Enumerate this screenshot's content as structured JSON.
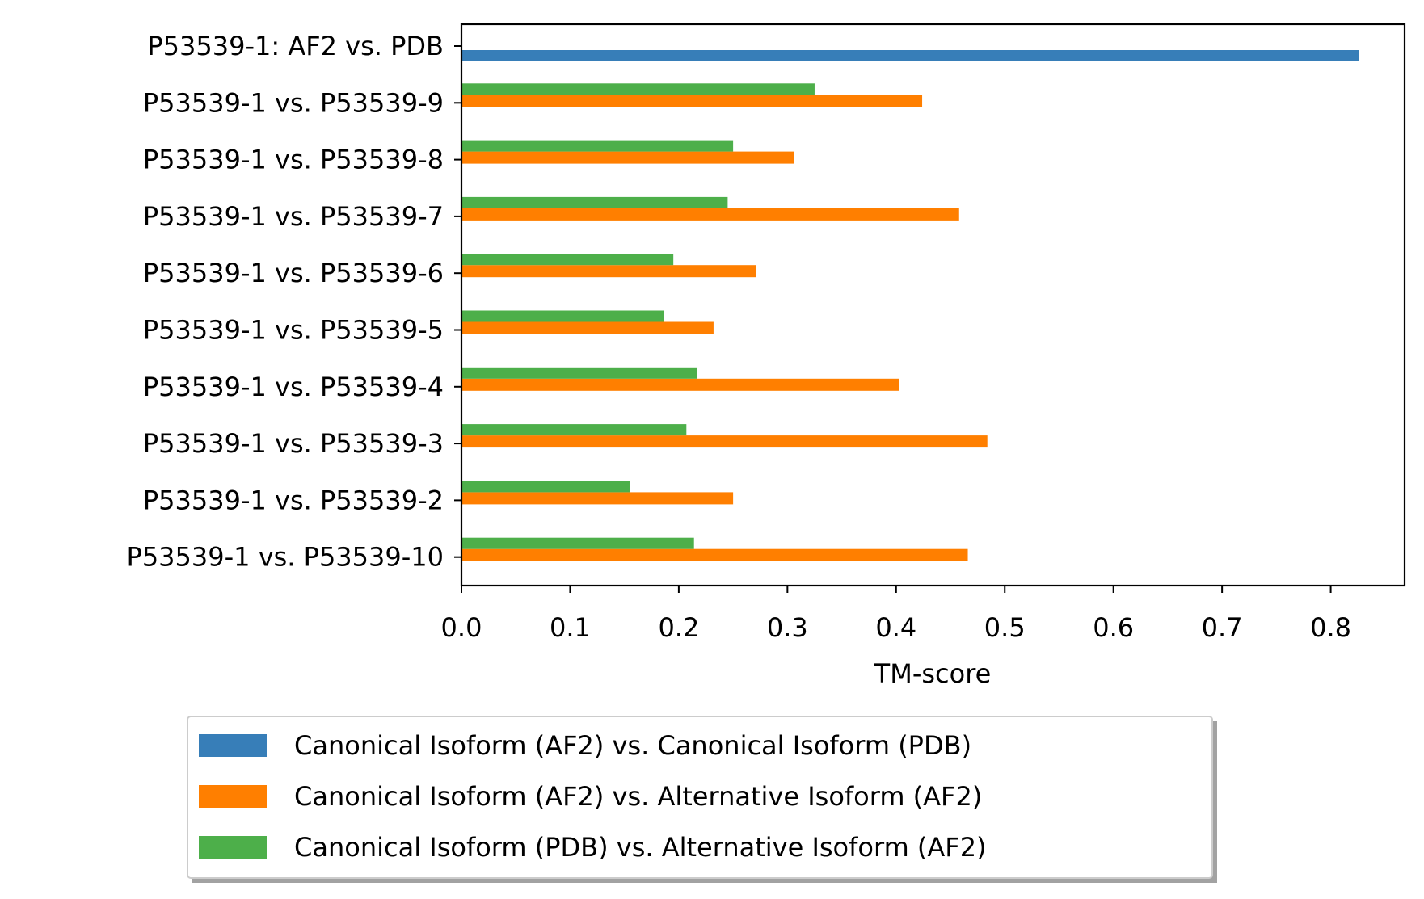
{
  "chart_data": {
    "type": "bar",
    "orientation": "horizontal",
    "categories": [
      "P53539-1: AF2 vs. PDB",
      "P53539-1 vs. P53539-9",
      "P53539-1 vs. P53539-8",
      "P53539-1 vs. P53539-7",
      "P53539-1 vs. P53539-6",
      "P53539-1 vs. P53539-5",
      "P53539-1 vs. P53539-4",
      "P53539-1 vs. P53539-3",
      "P53539-1 vs. P53539-2",
      "P53539-1 vs. P53539-10"
    ],
    "series": [
      {
        "name": "Canonical Isoform (AF2) vs. Canonical Isoform (PDB)",
        "color": "#377eb8",
        "values": [
          0.826,
          null,
          null,
          null,
          null,
          null,
          null,
          null,
          null,
          null
        ]
      },
      {
        "name": "Canonical Isoform (AF2) vs. Alternative Isoform (AF2)",
        "color": "#ff7f00",
        "values": [
          null,
          0.424,
          0.306,
          0.458,
          0.271,
          0.232,
          0.403,
          0.484,
          0.25,
          0.466
        ]
      },
      {
        "name": "Canonical Isoform (PDB) vs. Alternative Isoform (AF2)",
        "color": "#4daf4a",
        "values": [
          null,
          0.325,
          0.25,
          0.245,
          0.195,
          0.186,
          0.217,
          0.207,
          0.155,
          0.214
        ]
      }
    ],
    "title": "",
    "xlabel": "TM-score",
    "ylabel": "",
    "xlim": [
      0,
      0.868
    ],
    "xticks": [
      "0.0",
      "0.1",
      "0.2",
      "0.3",
      "0.4",
      "0.5",
      "0.6",
      "0.7",
      "0.8"
    ],
    "grid": false,
    "legend_placement": "below"
  }
}
